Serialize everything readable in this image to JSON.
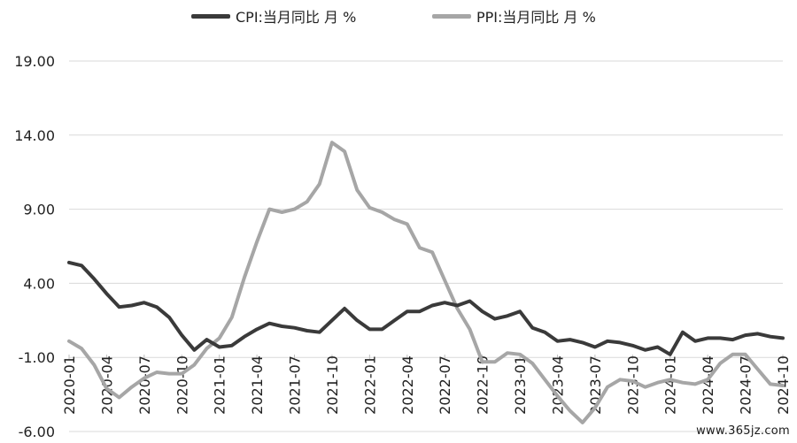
{
  "chart_data": {
    "type": "line",
    "title": "",
    "xlabel": "",
    "ylabel": "",
    "ylim": [
      -6,
      19
    ],
    "y_ticks": [
      "19.00",
      "14.00",
      "9.00",
      "4.00",
      "-1.00",
      "-6.00"
    ],
    "y_tick_values": [
      19,
      14,
      9,
      4,
      -1,
      -6
    ],
    "grid": "horizontal",
    "legend_position": "top",
    "x": [
      "2020-01",
      "2020-02",
      "2020-03",
      "2020-04",
      "2020-05",
      "2020-06",
      "2020-07",
      "2020-08",
      "2020-09",
      "2020-10",
      "2020-11",
      "2020-12",
      "2021-01",
      "2021-02",
      "2021-03",
      "2021-04",
      "2021-05",
      "2021-06",
      "2021-07",
      "2021-08",
      "2021-09",
      "2021-10",
      "2021-11",
      "2021-12",
      "2022-01",
      "2022-02",
      "2022-03",
      "2022-04",
      "2022-05",
      "2022-06",
      "2022-07",
      "2022-08",
      "2022-09",
      "2022-10",
      "2022-11",
      "2022-12",
      "2023-01",
      "2023-02",
      "2023-03",
      "2023-04",
      "2023-05",
      "2023-06",
      "2023-07",
      "2023-08",
      "2023-09",
      "2023-10",
      "2023-11",
      "2023-12",
      "2024-01",
      "2024-02",
      "2024-03",
      "2024-04",
      "2024-05",
      "2024-06",
      "2024-07",
      "2024-08",
      "2024-09",
      "2024-10"
    ],
    "x_tick_labels": [
      "2020-01",
      "2020-04",
      "2020-07",
      "2020-10",
      "2021-01",
      "2021-04",
      "2021-07",
      "2021-10",
      "2022-01",
      "2022-04",
      "2022-07",
      "2022-10",
      "2023-01",
      "2023-04",
      "2023-07",
      "2023-10",
      "2024-01",
      "2024-04",
      "2024-07",
      "2024-10"
    ],
    "series": [
      {
        "name": "CPI:当月同比 月 %",
        "color": "#3a3a3a",
        "values": [
          5.4,
          5.2,
          4.3,
          3.3,
          2.4,
          2.5,
          2.7,
          2.4,
          1.7,
          0.5,
          -0.5,
          0.2,
          -0.3,
          -0.2,
          0.4,
          0.9,
          1.3,
          1.1,
          1.0,
          0.8,
          0.7,
          1.5,
          2.3,
          1.5,
          0.9,
          0.9,
          1.5,
          2.1,
          2.1,
          2.5,
          2.7,
          2.5,
          2.8,
          2.1,
          1.6,
          1.8,
          2.1,
          1.0,
          0.7,
          0.1,
          0.2,
          0.0,
          -0.3,
          0.1,
          0.0,
          -0.2,
          -0.5,
          -0.3,
          -0.8,
          0.7,
          0.1,
          0.3,
          0.3,
          0.2,
          0.5,
          0.6,
          0.4,
          0.3
        ]
      },
      {
        "name": "PPI:当月同比 月 %",
        "color": "#a6a6a6",
        "values": [
          0.1,
          -0.4,
          -1.5,
          -3.1,
          -3.7,
          -3.0,
          -2.4,
          -2.0,
          -2.1,
          -2.1,
          -1.5,
          -0.4,
          0.3,
          1.7,
          4.4,
          6.8,
          9.0,
          8.8,
          9.0,
          9.5,
          10.7,
          13.5,
          12.9,
          10.3,
          9.1,
          8.8,
          8.3,
          8.0,
          6.4,
          6.1,
          4.2,
          2.3,
          0.9,
          -1.3,
          -1.3,
          -0.7,
          -0.8,
          -1.4,
          -2.5,
          -3.6,
          -4.6,
          -5.4,
          -4.4,
          -3.0,
          -2.5,
          -2.6,
          -3.0,
          -2.7,
          -2.5,
          -2.7,
          -2.8,
          -2.5,
          -1.4,
          -0.8,
          -0.8,
          -1.8,
          -2.8,
          -2.9
        ]
      }
    ]
  },
  "watermark": "www.365jz.com"
}
